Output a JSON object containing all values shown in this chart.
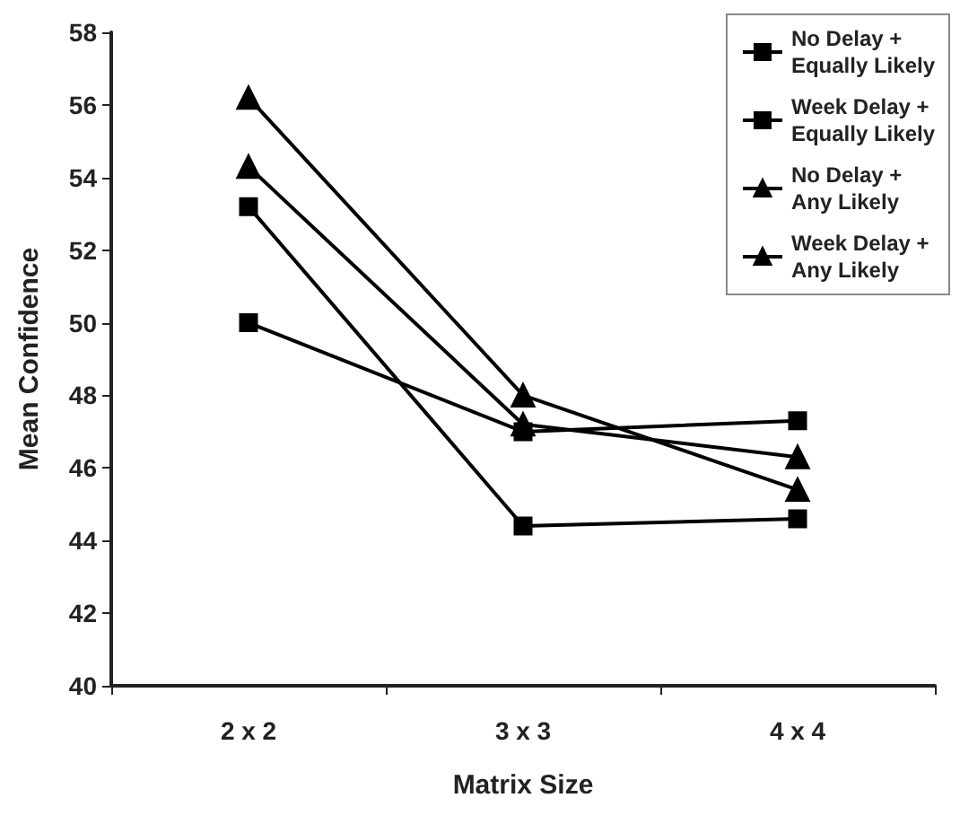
{
  "chart_data": {
    "type": "line",
    "xlabel": "Matrix Size",
    "ylabel": "Mean Confidence",
    "categories": [
      "2 x 2",
      "3 x 3",
      "4 x 4"
    ],
    "series": [
      {
        "name": "No Delay +\nEqually Likely",
        "color": "#000000",
        "marker": "square",
        "values": [
          53.2,
          44.4,
          44.6
        ]
      },
      {
        "name": "Week Delay +\nEqually Likely",
        "color": "#000000",
        "marker": "square",
        "values": [
          50.0,
          47.0,
          47.3
        ]
      },
      {
        "name": "No Delay +\nAny Likely",
        "color": "#000000",
        "marker": "triangle",
        "values": [
          54.3,
          47.2,
          46.3
        ]
      },
      {
        "name": "Week Delay +\nAny Likely",
        "color": "#000000",
        "marker": "triangle",
        "values": [
          56.2,
          48.0,
          45.4
        ]
      }
    ],
    "ylim": [
      40,
      58
    ],
    "yticks": [
      40,
      42,
      44,
      46,
      48,
      50,
      52,
      54,
      56,
      58
    ],
    "grid": false,
    "legend": "top right",
    "line_style": "solid"
  }
}
